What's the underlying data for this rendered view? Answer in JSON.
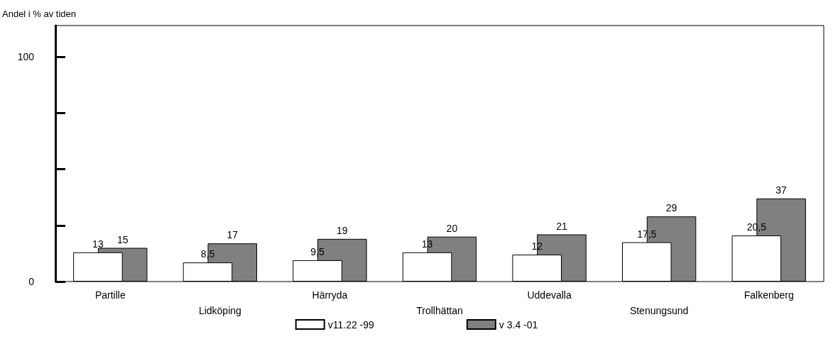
{
  "chart_data": {
    "type": "bar",
    "ylabel": "Andel i % av tiden",
    "categories": [
      "Partille",
      "Lidköping",
      "Härryda",
      "Trollhättan",
      "Uddevalla",
      "Stenungsund",
      "Falkenberg"
    ],
    "series": [
      {
        "name": "v11.22 -99",
        "color": "#ffffff",
        "values": [
          13,
          8.5,
          9.5,
          13,
          12,
          17.5,
          20.5
        ],
        "value_labels": [
          "13",
          "8,5",
          "9,5",
          "13",
          "12",
          "17,5",
          "20,5"
        ]
      },
      {
        "name": "v 3.4 -01",
        "color": "#808080",
        "values": [
          15,
          17,
          19,
          20,
          21,
          29,
          37
        ],
        "value_labels": [
          "15",
          "17",
          "19",
          "20",
          "21",
          "29",
          "37"
        ]
      }
    ],
    "ylim": [
      0,
      114
    ],
    "yticks": [
      0,
      {
        "value": 25,
        "label": null
      },
      {
        "value": 50,
        "label": null
      },
      {
        "value": 75,
        "label": null
      },
      100
    ],
    "grid": false,
    "legend": "bottom"
  }
}
